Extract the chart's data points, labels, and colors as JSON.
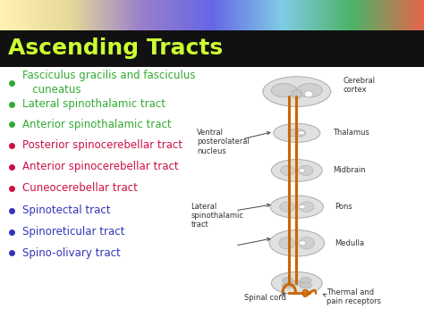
{
  "title": "Ascending Tracts",
  "title_color": "#ccff33",
  "title_fontsize": 18,
  "title_fontstyle": "bold",
  "background_color": "#ffffff",
  "header_bg_color": "#111111",
  "bullet_items": [
    {
      "text": "Fasciculus gracilis and fasciculus\n   cuneatus",
      "color": "#33aa33"
    },
    {
      "text": "Lateral spinothalamic tract",
      "color": "#33aa33"
    },
    {
      "text": "Anterior spinothalamic tract",
      "color": "#33aa33"
    },
    {
      "text": "Posterior spinocerebellar tract",
      "color": "#cc1144"
    },
    {
      "text": "Anterior spinocerebellar tract",
      "color": "#cc1144"
    },
    {
      "text": "Cuneocerebellar tract",
      "color": "#cc1144"
    },
    {
      "text": "Spinotectal tract",
      "color": "#3333bb"
    },
    {
      "text": "Spinoreticular tract",
      "color": "#3333bb"
    },
    {
      "text": "Spino-olivary tract",
      "color": "#3333bb"
    }
  ],
  "bullet_fontsize": 8.5,
  "diagram_labels": {
    "cerebral_cortex": "Cerebral\ncortex",
    "thalamus": "Thalamus",
    "midbrain": "Midbrain",
    "pons": "Pons",
    "lateral_spinothalamic": "Lateral\nspinothalamic\ntract",
    "medulla": "Medulla",
    "ventral_posterolateral": "Ventral\nposterolateral\nnucleus",
    "spinal_cord": "Spinal cord",
    "thermal_pain": "Thermal and\npain receptors"
  },
  "tract_color": "#cc6600",
  "anatomy_fill": "#d8d8d8",
  "anatomy_edge": "#aaaaaa",
  "label_fontsize": 6.0,
  "label_color": "#333333"
}
